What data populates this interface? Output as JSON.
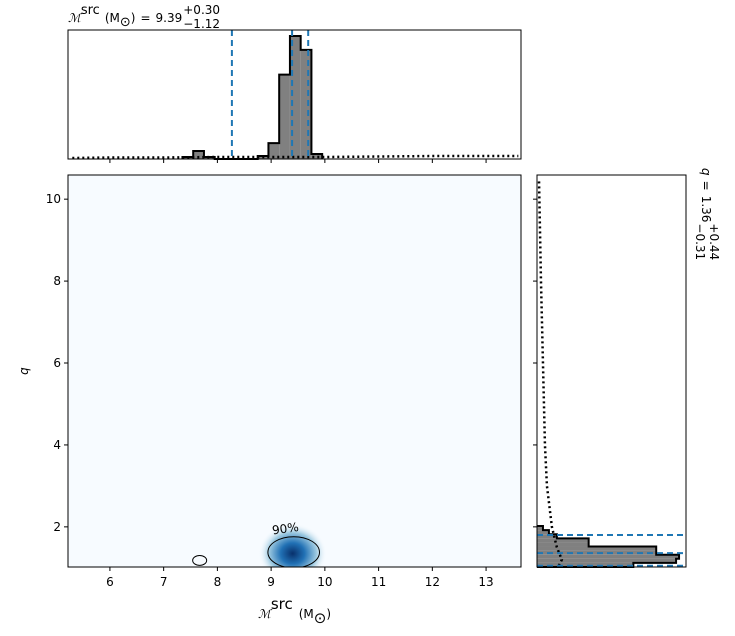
{
  "chart_data": [
    {
      "type": "kde2d",
      "xlabel": {
        "symbol": "ℳ",
        "sup": "src",
        "unit": "(M",
        "unit_sub": "⊙",
        "close": ")"
      },
      "ylabel": "q",
      "xlim": [
        5.22,
        13.65
      ],
      "xticks": [
        6,
        7,
        8,
        9,
        10,
        11,
        12,
        13
      ],
      "ylim": [
        1.02,
        10.59
      ],
      "yticks": [
        2,
        4,
        6,
        8,
        10
      ],
      "peak": [
        9.4,
        1.35
      ],
      "contours": [
        {
          "cx": 9.42,
          "cy": 1.38,
          "rx": 0.48,
          "ry": 0.38
        },
        {
          "cx": 7.67,
          "cy": 1.18,
          "rx": 0.13,
          "ry": 0.12
        }
      ],
      "contour_label": {
        "value": 90,
        "label": "90%"
      },
      "color": "#08519c"
    },
    {
      "type": "histogram",
      "equals": "=",
      "median": 9.39,
      "plus": {
        "value": 0.3,
        "label": "+0.30"
      },
      "minus": {
        "value": 1.12,
        "label": "−1.12"
      },
      "bins": [
        7.35,
        7.55,
        7.75,
        7.95,
        8.15,
        8.35,
        8.55,
        8.75,
        8.95,
        9.15,
        9.35,
        9.55,
        9.75,
        9.95
      ],
      "values": [
        2,
        8,
        2,
        0,
        0,
        0,
        0,
        3,
        16,
        85,
        124,
        110,
        5
      ],
      "ylim": [
        0,
        130
      ],
      "prior_x": [
        5.3,
        6,
        7,
        8,
        9,
        10,
        11,
        12,
        13,
        13.6
      ],
      "prior_values": [
        1,
        1.5,
        1.5,
        2,
        2,
        2,
        2.5,
        3,
        3,
        3
      ],
      "quantile_lines": [
        8.27,
        9.39,
        9.69
      ],
      "color": "#808080",
      "line_color": "#1f77b4"
    },
    {
      "type": "histogram_horizontal",
      "label": "q",
      "equals": "=",
      "median": 1.36,
      "plus": {
        "value": 0.44,
        "label": "+0.44"
      },
      "minus": {
        "value": 0.31,
        "label": "−0.31"
      },
      "bins": [
        1.02,
        1.12,
        1.22,
        1.32,
        1.42,
        1.52,
        1.62,
        1.72,
        1.82,
        1.92,
        2.02
      ],
      "values": [
        97,
        140,
        143,
        120,
        120,
        52,
        52,
        20,
        12,
        6
      ],
      "xlim": [
        0,
        150
      ],
      "prior_y": [
        1.05,
        1.2,
        1.5,
        2,
        3,
        4,
        6,
        8,
        10.5
      ],
      "prior_values": [
        22,
        25,
        20,
        15,
        10,
        8,
        6,
        4,
        2
      ],
      "quantile_lines": [
        1.05,
        1.36,
        1.8
      ],
      "color": "#808080",
      "line_color": "#1f77b4"
    }
  ]
}
